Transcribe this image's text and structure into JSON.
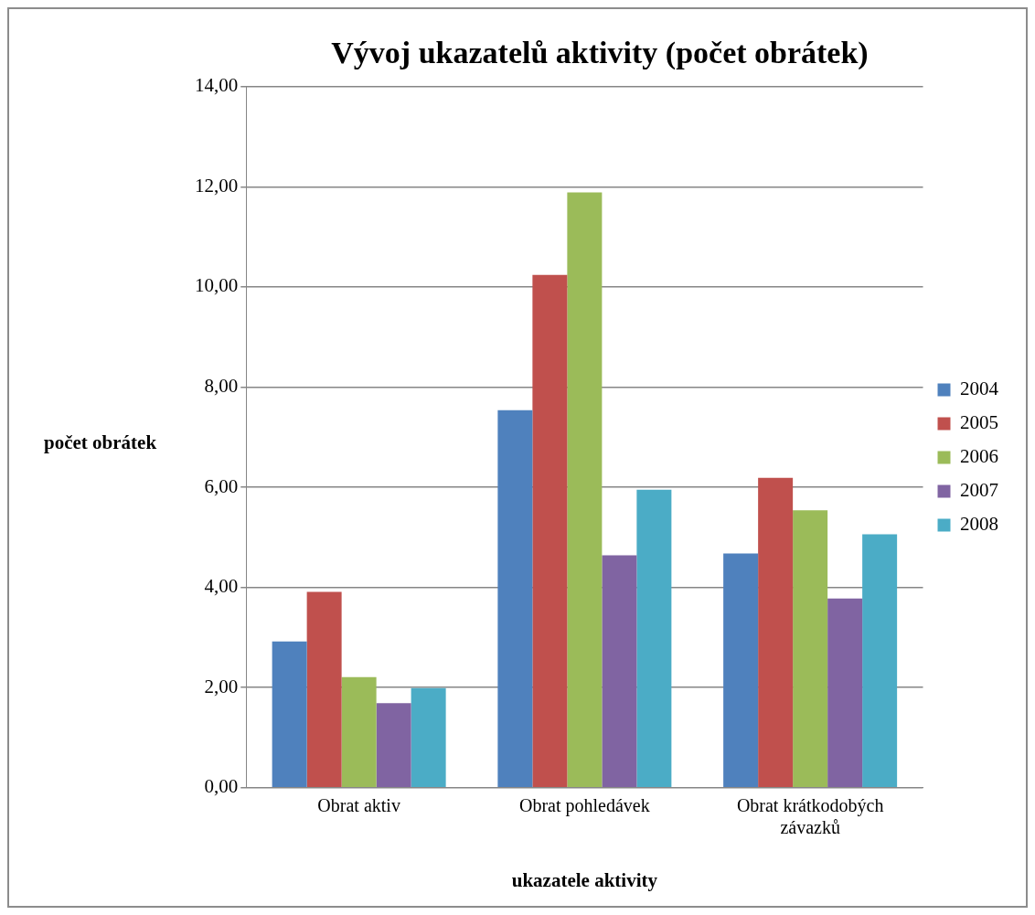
{
  "chart_data": {
    "type": "bar",
    "title": "Vývoj ukazatelů aktivity (počet obrátek)",
    "xlabel": "ukazatele aktivity",
    "ylabel": "počet obrátek",
    "categories": [
      "Obrat aktiv",
      "Obrat pohledávek",
      "Obrat krátkodobých závazků"
    ],
    "series": [
      {
        "name": "2004",
        "color": "#4f81bd",
        "values": [
          2.92,
          7.54,
          4.68
        ]
      },
      {
        "name": "2005",
        "color": "#c0504d",
        "values": [
          3.91,
          10.24,
          6.19
        ]
      },
      {
        "name": "2006",
        "color": "#9bbb59",
        "values": [
          2.21,
          11.89,
          5.54
        ]
      },
      {
        "name": "2007",
        "color": "#8064a2",
        "values": [
          1.69,
          4.64,
          3.78
        ]
      },
      {
        "name": "2008",
        "color": "#4bacc6",
        "values": [
          1.99,
          5.95,
          5.06
        ]
      }
    ],
    "ylim": [
      0,
      14
    ],
    "yticks": [
      {
        "value": 0,
        "label": "0,00"
      },
      {
        "value": 2,
        "label": "2,00"
      },
      {
        "value": 4,
        "label": "4,00"
      },
      {
        "value": 6,
        "label": "6,00"
      },
      {
        "value": 8,
        "label": "8,00"
      },
      {
        "value": 10,
        "label": "10,00"
      },
      {
        "value": 12,
        "label": "12,00"
      },
      {
        "value": 14,
        "label": "14,00"
      }
    ],
    "grid": "y",
    "legend": "right"
  }
}
